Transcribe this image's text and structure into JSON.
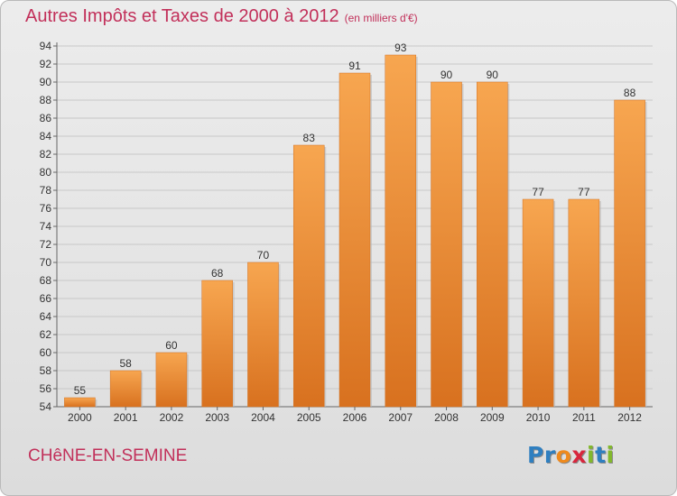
{
  "header": {
    "title": "Autres Impôts et Taxes de 2000 à 2012",
    "unit_note": "(en milliers d'€)"
  },
  "footer": {
    "commune": "CHêNE-EN-SEMINE",
    "logo_letters": [
      {
        "char": "P",
        "color": "#2f7fc0"
      },
      {
        "char": "r",
        "color": "#2f7fc0"
      },
      {
        "char": "o",
        "color": "#ef8a1d"
      },
      {
        "char": "x",
        "color": "#d8263d"
      },
      {
        "char": "i",
        "color": "#82b82c"
      },
      {
        "char": "t",
        "color": "#2f7fc0"
      },
      {
        "char": "i",
        "color": "#82b82c"
      }
    ]
  },
  "colors": {
    "bar_top": "#f7a650",
    "bar_bottom": "#d8711f",
    "grid": "#c8c8c8",
    "axis": "#666666"
  },
  "chart_data": {
    "type": "bar",
    "title": "Autres Impôts et Taxes de 2000 à 2012",
    "subtitle": "(en milliers d'€)",
    "xlabel": "",
    "ylabel": "",
    "categories": [
      "2000",
      "2001",
      "2002",
      "2003",
      "2004",
      "2005",
      "2006",
      "2007",
      "2008",
      "2009",
      "2010",
      "2011",
      "2012"
    ],
    "values": [
      55,
      58,
      60,
      68,
      70,
      83,
      91,
      93,
      90,
      90,
      77,
      77,
      88
    ],
    "ylim": [
      54,
      94
    ],
    "ytick_step": 2,
    "grid": true,
    "legend": "none"
  }
}
